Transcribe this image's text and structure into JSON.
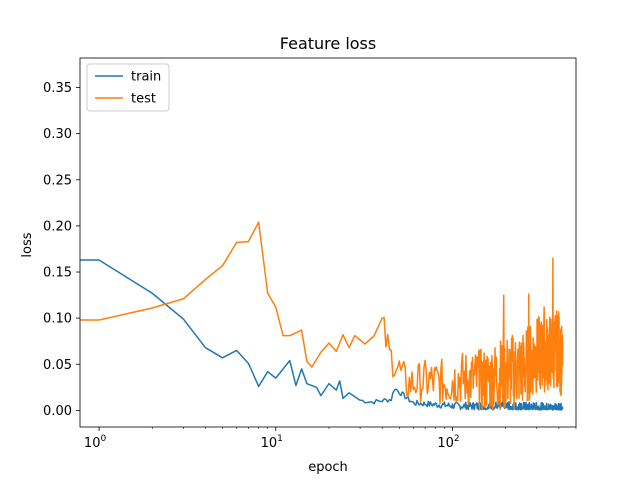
{
  "chart_data": {
    "type": "line",
    "title": "Feature loss",
    "xlabel": "epoch",
    "ylabel": "loss",
    "xscale": "log",
    "xlim": [
      0.78,
      500
    ],
    "ylim": [
      -0.018,
      0.382
    ],
    "x_ticks": [
      1,
      10,
      100
    ],
    "y_ticks": [
      0.0,
      0.05,
      0.1,
      0.15,
      0.2,
      0.25,
      0.3,
      0.35
    ],
    "y_tick_labels": [
      "0.00",
      "0.05",
      "0.10",
      "0.15",
      "0.20",
      "0.25",
      "0.30",
      "0.35"
    ],
    "grid": false,
    "legend": "top-left",
    "colors": {
      "train": "#1f77b4",
      "test": "#ff7f0e"
    },
    "series": [
      {
        "name": "train",
        "anchors": [
          [
            0.78,
            0.163
          ],
          [
            1,
            0.163
          ],
          [
            2,
            0.127
          ],
          [
            3,
            0.099
          ],
          [
            4,
            0.068
          ],
          [
            5,
            0.057
          ],
          [
            6,
            0.065
          ],
          [
            7,
            0.051
          ],
          [
            8,
            0.026
          ],
          [
            9,
            0.042
          ],
          [
            10,
            0.035
          ],
          [
            12,
            0.054
          ],
          [
            13,
            0.027
          ],
          [
            14,
            0.045
          ],
          [
            15,
            0.029
          ],
          [
            17,
            0.025
          ],
          [
            18,
            0.016
          ],
          [
            20,
            0.029
          ],
          [
            22,
            0.022
          ],
          [
            23,
            0.032
          ],
          [
            24,
            0.013
          ],
          [
            26,
            0.019
          ],
          [
            30,
            0.011
          ],
          [
            35,
            0.009
          ],
          [
            45,
            0.012
          ],
          [
            47,
            0.024
          ],
          [
            60,
            0.008
          ],
          [
            100,
            0.005
          ],
          [
            200,
            0.004
          ],
          [
            300,
            0.003
          ],
          [
            420,
            0.002
          ]
        ],
        "noise": 0.004,
        "noise_from": 30
      },
      {
        "name": "test",
        "anchors": [
          [
            0.78,
            0.098
          ],
          [
            1,
            0.098
          ],
          [
            2,
            0.111
          ],
          [
            3,
            0.121
          ],
          [
            4,
            0.142
          ],
          [
            5,
            0.157
          ],
          [
            6,
            0.182
          ],
          [
            7,
            0.183
          ],
          [
            8,
            0.204
          ],
          [
            9,
            0.127
          ],
          [
            10,
            0.112
          ],
          [
            11,
            0.081
          ],
          [
            12,
            0.081
          ],
          [
            14,
            0.087
          ],
          [
            15,
            0.053
          ],
          [
            16,
            0.047
          ],
          [
            18,
            0.063
          ],
          [
            20,
            0.073
          ],
          [
            22,
            0.064
          ],
          [
            24,
            0.082
          ],
          [
            26,
            0.068
          ],
          [
            28,
            0.081
          ],
          [
            32,
            0.072
          ],
          [
            36,
            0.081
          ],
          [
            40,
            0.093
          ],
          [
            44,
            0.06
          ],
          [
            48,
            0.05
          ],
          [
            55,
            0.028
          ],
          [
            70,
            0.032
          ],
          [
            90,
            0.03
          ],
          [
            110,
            0.035
          ],
          [
            150,
            0.032
          ],
          [
            200,
            0.04
          ],
          [
            250,
            0.045
          ],
          [
            300,
            0.06
          ],
          [
            350,
            0.062
          ],
          [
            400,
            0.068
          ],
          [
            420,
            0.045
          ]
        ],
        "noise": 0.03,
        "noise_from": 40,
        "spikes": [
          [
            195,
            0.125
          ],
          [
            270,
            0.126
          ],
          [
            330,
            0.112
          ],
          [
            370,
            0.165
          ],
          [
            410,
            0.088
          ]
        ]
      }
    ]
  }
}
